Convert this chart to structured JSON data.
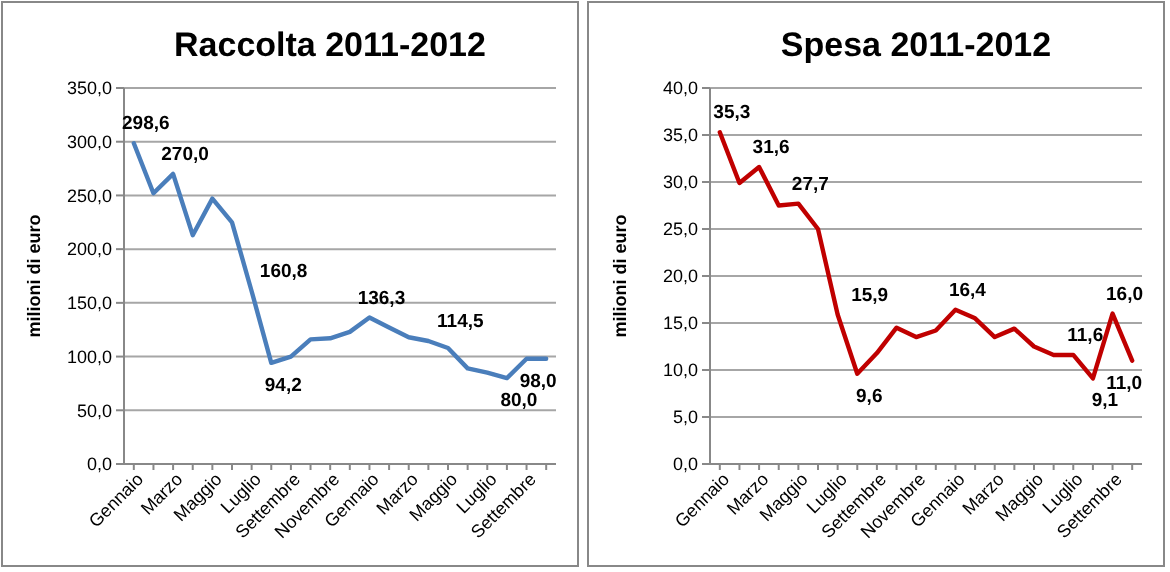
{
  "chart_data": [
    {
      "type": "line",
      "title": "Raccolta 2011-2012",
      "ylabel": "milioni di euro",
      "categories": [
        "Gennaio",
        null,
        "Marzo",
        null,
        "Maggio",
        null,
        "Luglio",
        null,
        "Settembre",
        null,
        "Novembre",
        null,
        "Gennaio",
        null,
        "Marzo",
        null,
        "Maggio",
        null,
        "Luglio",
        null,
        "Settembre",
        null
      ],
      "series": [
        {
          "color": "#4a7ebb",
          "values": [
            298.6,
            252,
            270.0,
            213,
            247,
            225,
            160.8,
            94.2,
            100,
            116,
            117,
            123,
            136.3,
            127,
            118,
            114.5,
            108,
            89,
            85,
            80.0,
            98,
            98.0
          ],
          "value_labels": [
            "298,6",
            null,
            "270,0",
            null,
            null,
            null,
            "160,8",
            "94,2",
            null,
            null,
            null,
            null,
            "136,3",
            null,
            null,
            "114,5",
            null,
            null,
            null,
            "80,0",
            null,
            "98,0"
          ]
        }
      ],
      "ylim": [
        0,
        350
      ],
      "yticks": [
        {
          "value": 0,
          "label": "0,0"
        },
        {
          "value": 50,
          "label": "50,0"
        },
        {
          "value": 100,
          "label": "100,0"
        },
        {
          "value": 150,
          "label": "150,0"
        },
        {
          "value": 200,
          "label": "200,0"
        },
        {
          "value": 250,
          "label": "250,0"
        },
        {
          "value": 300,
          "label": "300,0"
        },
        {
          "value": 350,
          "label": "350,0"
        }
      ],
      "grid": "y",
      "marker": "none"
    },
    {
      "type": "line",
      "title": "Spesa 2011-2012",
      "ylabel": "milioni di euro",
      "categories": [
        "Gennaio",
        null,
        "Marzo",
        null,
        "Maggio",
        null,
        "Luglio",
        null,
        "Settembre",
        null,
        "Novembre",
        null,
        "Gennaio",
        null,
        "Marzo",
        null,
        "Maggio",
        null,
        "Luglio",
        null,
        "Settembre",
        null
      ],
      "series": [
        {
          "color": "#c00000",
          "values": [
            35.3,
            29.9,
            31.6,
            27.5,
            27.7,
            25.0,
            15.9,
            9.6,
            11.8,
            14.5,
            13.5,
            14.2,
            16.4,
            15.5,
            13.5,
            14.4,
            12.5,
            11.6,
            11.6,
            9.1,
            16.0,
            11.0
          ],
          "value_labels": [
            "35,3",
            null,
            "31,6",
            null,
            "27,7",
            null,
            "15,9",
            "9,6",
            null,
            null,
            null,
            null,
            "16,4",
            null,
            null,
            null,
            null,
            null,
            "11,6",
            "9,1",
            "16,0",
            "11,0"
          ]
        }
      ],
      "ylim": [
        0,
        40
      ],
      "yticks": [
        {
          "value": 0,
          "label": "0,0"
        },
        {
          "value": 5,
          "label": "5,0"
        },
        {
          "value": 10,
          "label": "10,0"
        },
        {
          "value": 15,
          "label": "15,0"
        },
        {
          "value": 20,
          "label": "20,0"
        },
        {
          "value": 25,
          "label": "25,0"
        },
        {
          "value": 30,
          "label": "30,0"
        },
        {
          "value": 35,
          "label": "35,0"
        },
        {
          "value": 40,
          "label": "40,0"
        }
      ],
      "grid": "y",
      "marker": "none"
    }
  ]
}
